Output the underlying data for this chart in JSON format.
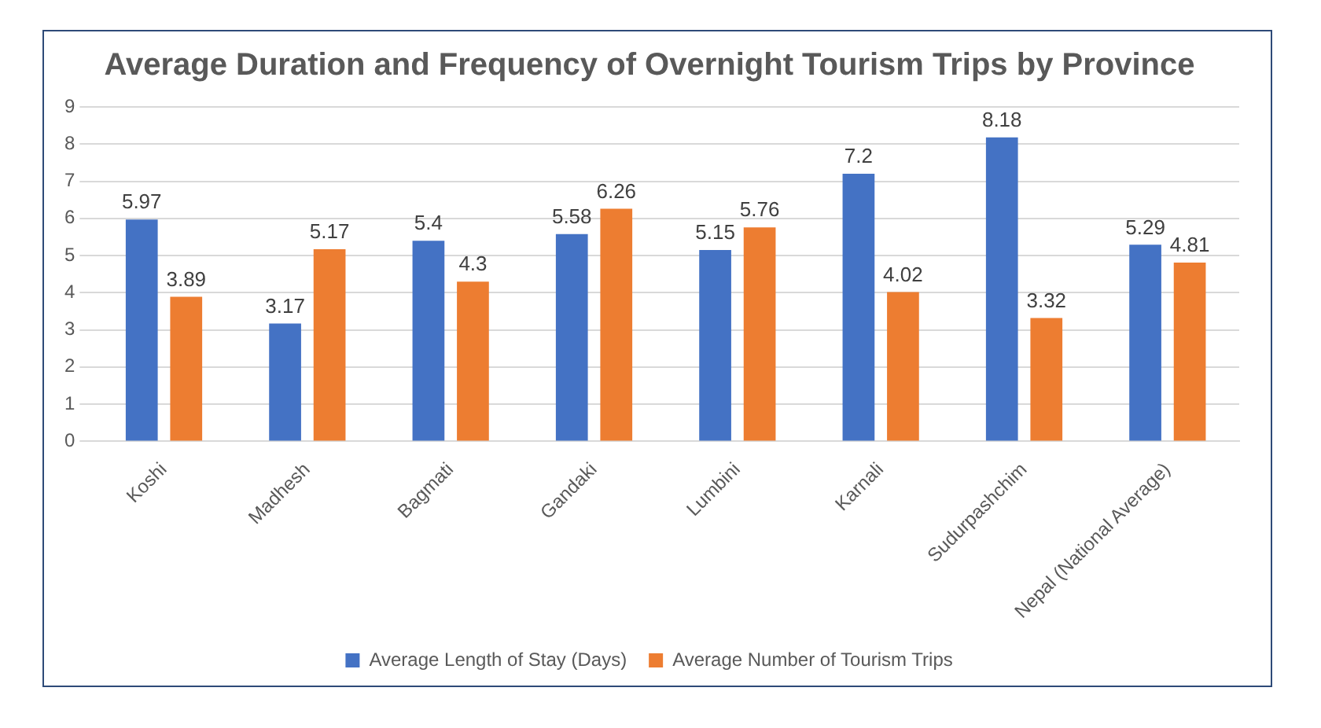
{
  "chart_data": {
    "type": "bar",
    "title": "Average Duration and Frequency of Overnight Tourism Trips by Province",
    "categories": [
      "Koshi",
      "Madhesh",
      "Bagmati",
      "Gandaki",
      "Lumbini",
      "Karnali",
      "Sudurpashchim",
      "Nepal (National Average)"
    ],
    "series": [
      {
        "name": "Average Length of Stay (Days)",
        "color": "#4472c4",
        "values": [
          5.97,
          3.17,
          5.4,
          5.58,
          5.15,
          7.2,
          8.18,
          5.29
        ]
      },
      {
        "name": "Average Number of Tourism Trips",
        "color": "#ed7d31",
        "values": [
          3.89,
          5.17,
          4.3,
          6.26,
          5.76,
          4.02,
          3.32,
          4.81
        ]
      }
    ],
    "ylim": [
      0,
      9
    ],
    "yticks": [
      0,
      1,
      2,
      3,
      4,
      5,
      6,
      7,
      8,
      9
    ],
    "grid": "y",
    "legend": "bottom",
    "data_labels": true
  }
}
